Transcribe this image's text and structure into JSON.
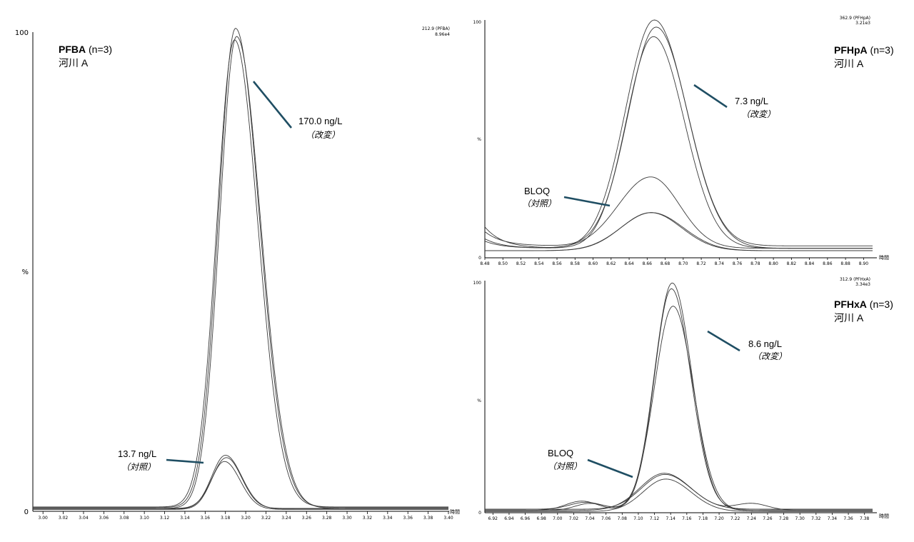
{
  "chart_data": [
    {
      "type": "line",
      "id": "pfba",
      "title_bold": "PFBA",
      "title_n": " (n=3)",
      "subtitle": "河川 A",
      "corner": [
        "212.9 (PFBA)",
        "8.96e4"
      ],
      "y_top_label": "100",
      "y_mid_label": "%",
      "y_zero_label": "0",
      "x_unit_label": "時間",
      "xlim": [
        2.99,
        3.4
      ],
      "ylim": [
        0,
        100
      ],
      "ticks": [
        "3.00",
        "3.02",
        "3.04",
        "3.06",
        "3.08",
        "3.10",
        "3.12",
        "3.14",
        "3.16",
        "3.18",
        "3.20",
        "3.22",
        "3.24",
        "3.26",
        "3.28",
        "3.30",
        "3.32",
        "3.34",
        "3.36",
        "3.38",
        "3.40"
      ],
      "series": [
        {
          "group": "modified",
          "peaks": [
            {
              "mu": 3.19,
              "h": 100,
              "wL": 0.017,
              "wR": 0.0235
            }
          ],
          "baseline": 0.8
        },
        {
          "group": "modified",
          "peaks": [
            {
              "mu": 3.191,
              "h": 98.5,
              "wL": 0.0168,
              "wR": 0.0238
            }
          ],
          "baseline": 0.6
        },
        {
          "group": "modified",
          "peaks": [
            {
              "mu": 3.189,
              "h": 97.5,
              "wL": 0.0175,
              "wR": 0.023
            }
          ],
          "baseline": 0.9
        },
        {
          "group": "control",
          "peaks": [
            {
              "mu": 3.18,
              "h": 11.2,
              "wL": 0.0135,
              "wR": 0.016
            }
          ],
          "baseline": 0.5
        },
        {
          "group": "control",
          "peaks": [
            {
              "mu": 3.181,
              "h": 10.6,
              "wL": 0.014,
              "wR": 0.015
            }
          ],
          "baseline": 0.6
        },
        {
          "group": "control",
          "peaks": [
            {
              "mu": 3.179,
              "h": 10.0,
              "wL": 0.013,
              "wR": 0.0155
            }
          ],
          "baseline": 0.4
        }
      ],
      "annotations": [
        {
          "text": "170.0 ng/L",
          "note": "（改変）"
        },
        {
          "text": "13.7 ng/L",
          "note": "（対照）"
        }
      ]
    },
    {
      "type": "line",
      "id": "pfhpa",
      "title_bold": "PFHpA",
      "title_n": " (n=3)",
      "subtitle": "河川 A",
      "corner": [
        "362.9 (PFHpA)",
        "3.21e3"
      ],
      "y_top_label": "100",
      "y_mid_label": "%",
      "y_zero_label": "0",
      "x_unit_label": "時間",
      "xlim": [
        8.48,
        8.91
      ],
      "ylim": [
        0,
        100
      ],
      "ticks": [
        "8.48",
        "8.50",
        "8.52",
        "8.54",
        "8.56",
        "8.58",
        "8.60",
        "8.62",
        "8.64",
        "8.66",
        "8.68",
        "8.70",
        "8.72",
        "8.74",
        "8.76",
        "8.78",
        "8.80",
        "8.82",
        "8.84",
        "8.86",
        "8.88",
        "8.90"
      ],
      "series": [
        {
          "group": "modified",
          "peaks": [
            {
              "mu": 8.668,
              "h": 96,
              "wL": 0.032,
              "wR": 0.036
            }
          ],
          "baseline": 4,
          "leftRise": 9
        },
        {
          "group": "modified",
          "peaks": [
            {
              "mu": 8.67,
              "h": 92,
              "wL": 0.031,
              "wR": 0.035
            }
          ],
          "baseline": 5,
          "leftRise": 6
        },
        {
          "group": "modified",
          "peaks": [
            {
              "mu": 8.667,
              "h": 89,
              "wL": 0.03,
              "wR": 0.034
            }
          ],
          "baseline": 4,
          "leftRise": 4
        },
        {
          "group": "control",
          "peaks": [
            {
              "mu": 8.664,
              "h": 30,
              "wL": 0.036,
              "wR": 0.032
            }
          ],
          "baseline": 4,
          "leftRise": 3
        },
        {
          "group": "control",
          "peaks": [
            {
              "mu": 8.664,
              "h": 16,
              "wL": 0.033,
              "wR": 0.034
            }
          ],
          "baseline": 3,
          "leftRise": 0
        },
        {
          "group": "control",
          "peaks": [
            {
              "mu": 8.665,
              "h": 16,
              "wL": 0.034,
              "wR": 0.035
            }
          ],
          "baseline": 3,
          "leftRise": 0
        }
      ],
      "annotations": [
        {
          "text": "7.3 ng/L",
          "note": "（改変）"
        },
        {
          "text": "BLOQ",
          "note": "（対照）"
        }
      ]
    },
    {
      "type": "line",
      "id": "pfhxa",
      "title_bold": "PFHxA",
      "title_n": " (n=3)",
      "subtitle": "河川 A",
      "corner": [
        "312.9 (PFHxA)",
        "3.34e3"
      ],
      "y_top_label": "100",
      "y_mid_label": "%",
      "y_zero_label": "0",
      "x_unit_label": "時間",
      "xlim": [
        6.91,
        7.39
      ],
      "ylim": [
        0,
        100
      ],
      "ticks": [
        "6.92",
        "6.94",
        "6.96",
        "6.98",
        "7.00",
        "7.02",
        "7.04",
        "7.06",
        "7.08",
        "7.10",
        "7.12",
        "7.14",
        "7.16",
        "7.18",
        "7.20",
        "7.22",
        "7.24",
        "7.26",
        "7.28",
        "7.30",
        "7.32",
        "7.34",
        "7.36",
        "7.38"
      ],
      "series": [
        {
          "group": "modified",
          "peaks": [
            {
              "mu": 7.142,
              "h": 98,
              "wL": 0.022,
              "wR": 0.024
            },
            {
              "mu": 7.03,
              "h": 4,
              "wL": 0.02,
              "wR": 0.02
            }
          ],
          "baseline": 1
        },
        {
          "group": "modified",
          "peaks": [
            {
              "mu": 7.141,
              "h": 95,
              "wL": 0.021,
              "wR": 0.024
            },
            {
              "mu": 7.035,
              "h": 3,
              "wL": 0.02,
              "wR": 0.02
            }
          ],
          "baseline": 1.5
        },
        {
          "group": "modified",
          "peaks": [
            {
              "mu": 7.143,
              "h": 88,
              "wL": 0.023,
              "wR": 0.025
            },
            {
              "mu": 7.04,
              "h": 3,
              "wL": 0.018,
              "wR": 0.02
            }
          ],
          "baseline": 1
        },
        {
          "group": "control",
          "peaks": [
            {
              "mu": 7.132,
              "h": 16,
              "wL": 0.03,
              "wR": 0.033
            },
            {
              "mu": 7.24,
              "h": 3,
              "wL": 0.02,
              "wR": 0.02
            }
          ],
          "baseline": 1
        },
        {
          "group": "control",
          "peaks": [
            {
              "mu": 7.133,
              "h": 15,
              "wL": 0.029,
              "wR": 0.032
            }
          ],
          "baseline": 1.5
        },
        {
          "group": "control",
          "peaks": [
            {
              "mu": 7.134,
              "h": 14,
              "wL": 0.028,
              "wR": 0.031
            }
          ],
          "baseline": 0.5
        }
      ],
      "annotations": [
        {
          "text": "8.6 ng/L",
          "note": "（改変）"
        },
        {
          "text": "BLOQ",
          "note": "（対照）"
        }
      ]
    }
  ]
}
